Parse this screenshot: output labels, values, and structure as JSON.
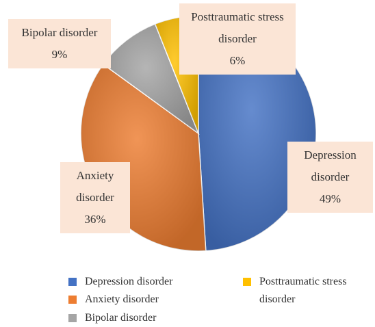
{
  "chart_data": {
    "type": "pie",
    "categories": [
      "Depression disorder",
      "Anxiety disorder",
      "Bipolar disorder",
      "Posttraumatic stress disorder"
    ],
    "values": [
      49,
      36,
      9,
      6
    ],
    "value_labels": [
      "49%",
      "36%",
      "9%",
      "6%"
    ],
    "colors": [
      "#4472c4",
      "#ed7d31",
      "#a5a5a5",
      "#ffc000"
    ],
    "legend": "bottom"
  }
}
